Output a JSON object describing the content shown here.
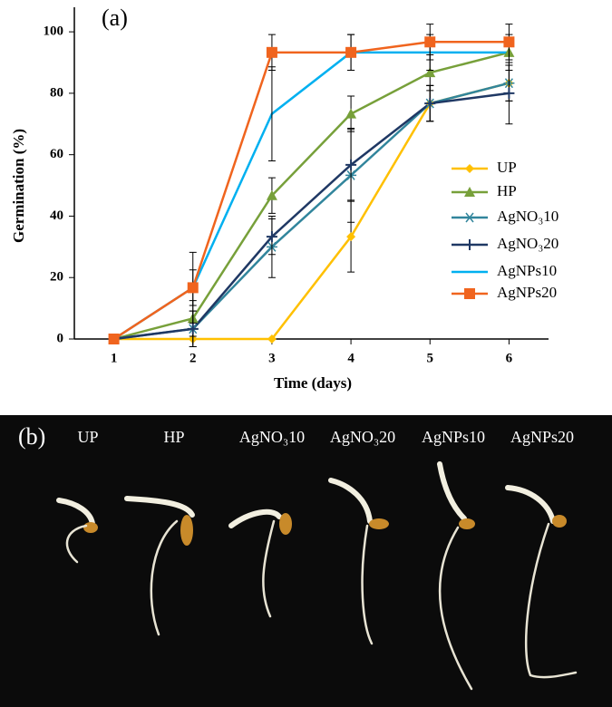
{
  "chart_data": {
    "type": "line",
    "panel_label": "(a)",
    "y_label": "Germination (%)",
    "x_label": "Time (days)",
    "x": [
      1,
      2,
      3,
      4,
      5,
      6
    ],
    "xlim": [
      0.5,
      6.5
    ],
    "xticks": [
      1,
      2,
      3,
      4,
      5,
      6
    ],
    "ylim": [
      0,
      108
    ],
    "yticks": [
      0,
      20,
      40,
      60,
      80,
      100
    ],
    "grid": false,
    "legend": "right",
    "series": [
      {
        "name": "UP",
        "color": "#ffc000",
        "marker": "diamond",
        "values": [
          0,
          0,
          0,
          33.3,
          76.7,
          83.3
        ],
        "errors": [
          0,
          0,
          0,
          11.5,
          5.8,
          5.8
        ]
      },
      {
        "name": "HP",
        "color": "#77a03a",
        "marker": "triangle",
        "values": [
          0,
          6.7,
          46.7,
          73.3,
          86.7,
          93.3
        ],
        "errors": [
          0,
          5.8,
          5.8,
          5.8,
          5.8,
          0
        ]
      },
      {
        "name": "AgNO₃10",
        "color": "#31859c",
        "marker": "asterisk",
        "values": [
          0,
          3.3,
          30,
          53.3,
          76.7,
          83.3
        ],
        "errors": [
          0,
          5.8,
          10,
          15.3,
          5.8,
          5.8
        ]
      },
      {
        "name": "AgNO₃20",
        "color": "#1f3864",
        "marker": "plus",
        "values": [
          0,
          3.3,
          33.3,
          56.7,
          76.7,
          80
        ],
        "errors": [
          0,
          5.8,
          5.8,
          11.5,
          5.8,
          10
        ]
      },
      {
        "name": "AgNPs10",
        "color": "#00b0f0",
        "marker": "none",
        "values": [
          0,
          16.7,
          73.3,
          93.3,
          93.3,
          93.3
        ],
        "errors": [
          0,
          5.8,
          15.3,
          5.8,
          5.8,
          5.8
        ]
      },
      {
        "name": "AgNPs20",
        "color": "#f0641e",
        "marker": "square",
        "values": [
          0,
          16.7,
          93.3,
          93.3,
          96.7,
          96.7
        ],
        "errors": [
          0,
          11.5,
          5.8,
          5.8,
          5.8,
          5.8
        ]
      }
    ]
  },
  "photo": {
    "panel_label": "(b)",
    "labels": [
      "UP",
      "HP",
      "AgNO₃10",
      "AgNO₃20",
      "AgNPs10",
      "AgNPs20"
    ]
  }
}
